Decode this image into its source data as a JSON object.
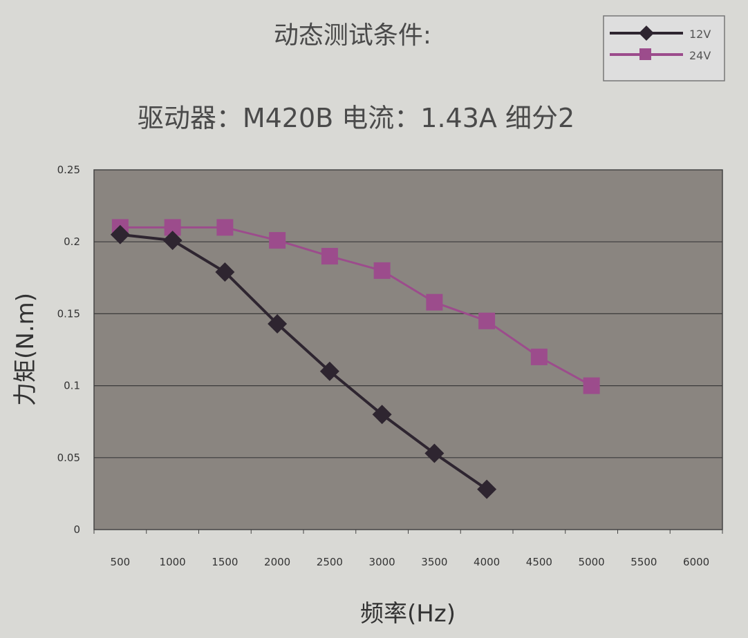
{
  "chart_data": {
    "type": "line",
    "title": "动态测试条件:",
    "subtitle": "驱动器：M420B  电流：1.43A  细分2",
    "xlabel": "频率(Hz)",
    "ylabel": "力矩(N.m)",
    "categories": [
      "500",
      "1000",
      "1500",
      "2000",
      "2500",
      "3000",
      "3500",
      "4000",
      "4500",
      "5000",
      "5500",
      "6000"
    ],
    "ylim": [
      0,
      0.25
    ],
    "yticks": [
      "0",
      "0.05",
      "0.1",
      "0.15",
      "0.2",
      "0.25"
    ],
    "grid": true,
    "legend_position": "top-right",
    "series": [
      {
        "name": "12V",
        "marker": "diamond",
        "color": "#2e2530",
        "values": [
          0.205,
          0.201,
          0.179,
          0.143,
          0.11,
          0.08,
          0.053,
          0.028,
          null,
          null,
          null,
          null
        ]
      },
      {
        "name": "24V",
        "marker": "square",
        "color": "#9c4c8c",
        "values": [
          0.21,
          0.21,
          0.21,
          0.201,
          0.19,
          0.18,
          0.158,
          0.145,
          0.12,
          0.1,
          null,
          null
        ]
      }
    ],
    "plot_background": "#8a8580"
  }
}
